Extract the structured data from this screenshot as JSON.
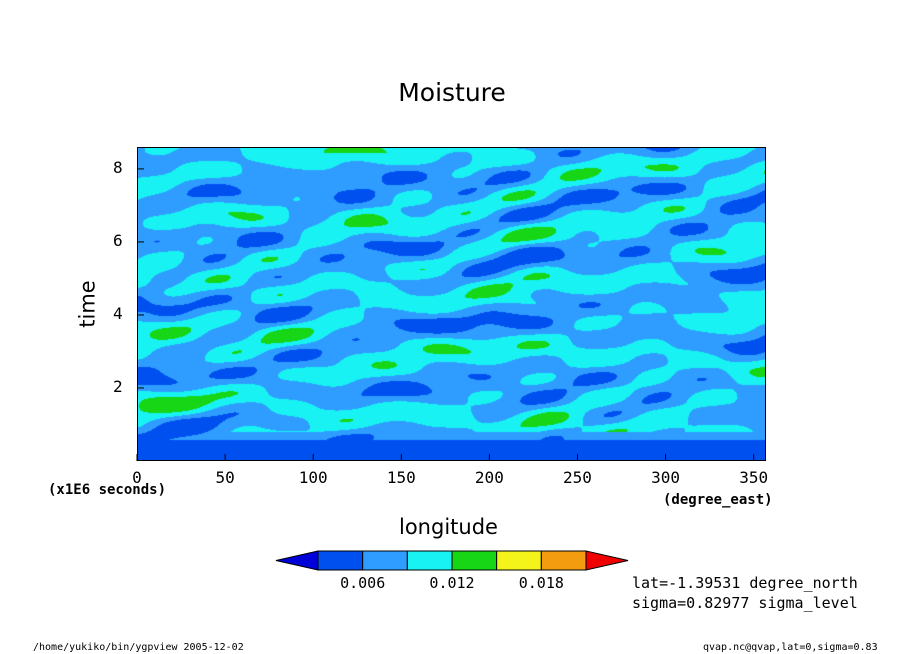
{
  "chart_data": {
    "type": "heatmap",
    "title": "Moisture",
    "xlabel": "longitude",
    "ylabel": "time",
    "x_unit": "(degree_east)",
    "y_unit": "(x1E6 seconds)",
    "xlim": [
      0,
      357
    ],
    "ylim": [
      0,
      8.6
    ],
    "x_ticks": [
      0,
      50,
      100,
      150,
      200,
      250,
      300,
      350
    ],
    "y_ticks": [
      2,
      4,
      6,
      8
    ],
    "colorbar": {
      "levels": [
        0.003,
        0.006,
        0.009,
        0.012,
        0.015,
        0.018,
        0.021
      ],
      "tick_labels": [
        "0.006",
        "0.012",
        "0.018"
      ],
      "colors": [
        "#0000d8",
        "#0050f0",
        "#2f9dff",
        "#18f2f2",
        "#16d616",
        "#f4f41a",
        "#f49c10",
        "#f00000"
      ]
    }
  },
  "annotations": {
    "lat": "lat=-1.39531 degree_north",
    "sigma": "sigma=0.82977 sigma_level"
  },
  "footer": {
    "left": "/home/yukiko/bin/ygpview  2005-12-02",
    "right": "qvap.nc@qvap,lat=0,sigma=0.83"
  }
}
